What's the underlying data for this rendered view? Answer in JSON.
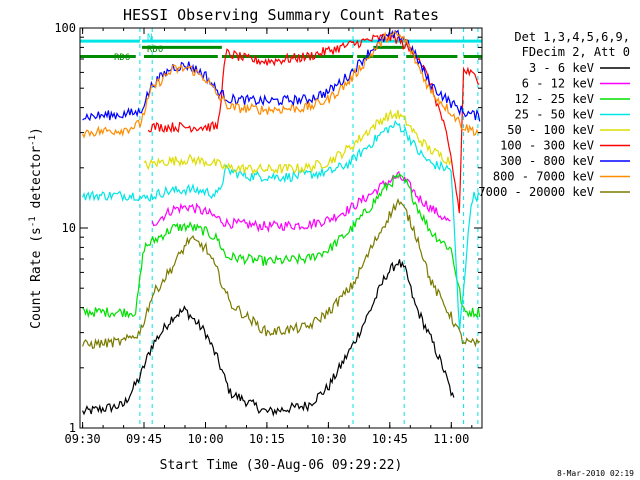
{
  "chart_data": {
    "type": "line",
    "title": "HESSI Observing Summary Count Rates",
    "xlabel": "Start Time (30-Aug-06 09:29:22)",
    "ylabel_main": "Count Rate (s",
    "ylabel_sup1": "-1",
    "ylabel_mid": " detector",
    "ylabel_sup2": "-1",
    "ylabel_end": ")",
    "footer": "8-Mar-2010 02:19",
    "x_ticks": [
      "09:30",
      "09:45",
      "10:00",
      "10:15",
      "10:30",
      "10:45",
      "11:00"
    ],
    "y_ticks": [
      "1",
      "10",
      "100"
    ],
    "xlim": [
      "09:29:22",
      "11:07:30"
    ],
    "ylim": [
      1,
      100
    ],
    "yscale": "log",
    "legend": {
      "placement": "right",
      "header_line1": "Det 1,3,4,5,6,9,",
      "header_line2": "FDecim 2, Att 0"
    },
    "annotations": [
      {
        "text": "N",
        "color": "#00e5e5"
      },
      {
        "text": "RD0",
        "color": "#008c00"
      },
      {
        "text": "RD6",
        "color": "#008c00"
      }
    ],
    "status_bars": [
      {
        "name": "N",
        "color": "#00e5e5",
        "level": 86,
        "segments": [
          [
            "09:29:22",
            "09:44:00"
          ],
          [
            "09:44:30",
            "11:07:30"
          ]
        ]
      },
      {
        "name": "RD0",
        "color": "#008c00",
        "level": 80,
        "segments": [
          [
            "09:44:30",
            "10:04:00"
          ],
          [
            "10:41:00",
            "10:48:30"
          ]
        ]
      },
      {
        "name": "RD6",
        "color": "#008c00",
        "level": 72,
        "segments": [
          [
            "09:29:22",
            "09:43:00"
          ],
          [
            "09:45:00",
            "10:03:00"
          ],
          [
            "10:04:00",
            "10:36:00"
          ],
          [
            "10:37:00",
            "10:47:00"
          ],
          [
            "10:49:00",
            "11:01:30"
          ],
          [
            "11:03:00",
            "11:07:30"
          ]
        ]
      }
    ],
    "night_times": [
      "09:44:00",
      "09:47:00",
      "10:36:00",
      "10:48:30",
      "11:03:00",
      "11:06:30"
    ],
    "series": [
      {
        "name": "3 - 6 keV",
        "color": "#000000",
        "points": [
          [
            "09:30",
            1.2
          ],
          [
            "09:40",
            1.3
          ],
          [
            "09:44",
            1.8
          ],
          [
            "09:47",
            2.6
          ],
          [
            "09:52",
            3.6
          ],
          [
            "09:55",
            3.9
          ],
          [
            "10:00",
            3.0
          ],
          [
            "10:03",
            2.2
          ],
          [
            "10:06",
            1.5
          ],
          [
            "10:15",
            1.2
          ],
          [
            "10:25",
            1.3
          ],
          [
            "10:30",
            1.6
          ],
          [
            "10:36",
            2.6
          ],
          [
            "10:40",
            3.8
          ],
          [
            "10:44",
            5.8
          ],
          [
            "10:47",
            6.8
          ],
          [
            "10:49",
            6.0
          ],
          [
            "10:51",
            4.2
          ],
          [
            "10:55",
            2.8
          ],
          [
            "10:58",
            2.0
          ],
          [
            "11:01",
            1.3
          ]
        ]
      },
      {
        "name": "6 - 12 keV",
        "color": "#ff00ff",
        "points": [
          [
            "09:47",
            10.5
          ],
          [
            "09:52",
            12.4
          ],
          [
            "09:56",
            12.8
          ],
          [
            "10:00",
            12.0
          ],
          [
            "10:03",
            11.2
          ],
          [
            "10:05",
            10.6
          ],
          [
            "10:15",
            10.2
          ],
          [
            "10:25",
            10.4
          ],
          [
            "10:30",
            11.0
          ],
          [
            "10:35",
            12.4
          ],
          [
            "10:40",
            14.6
          ],
          [
            "10:44",
            16.8
          ],
          [
            "10:47",
            18.2
          ],
          [
            "10:49",
            17.0
          ],
          [
            "10:52",
            14.2
          ],
          [
            "10:55",
            12.6
          ],
          [
            "11:00",
            10.5
          ]
        ]
      },
      {
        "name": "12 - 25 keV",
        "color": "#00e000",
        "points": [
          [
            "09:30",
            3.8
          ],
          [
            "09:43",
            3.8
          ],
          [
            "09:45",
            8.0
          ],
          [
            "09:48",
            8.8
          ],
          [
            "09:52",
            10.0
          ],
          [
            "09:56",
            10.2
          ],
          [
            "10:00",
            9.6
          ],
          [
            "10:03",
            8.8
          ],
          [
            "10:05",
            7.2
          ],
          [
            "10:15",
            6.8
          ],
          [
            "10:25",
            7.0
          ],
          [
            "10:30",
            7.8
          ],
          [
            "10:35",
            9.6
          ],
          [
            "10:40",
            12.6
          ],
          [
            "10:44",
            16.0
          ],
          [
            "10:47",
            18.0
          ],
          [
            "10:49",
            16.8
          ],
          [
            "10:52",
            12.4
          ],
          [
            "10:55",
            9.6
          ],
          [
            "11:00",
            7.8
          ],
          [
            "11:03",
            3.8
          ],
          [
            "11:07",
            3.8
          ]
        ]
      },
      {
        "name": "25 - 50 keV",
        "color": "#00e5e5",
        "points": [
          [
            "09:30",
            14.5
          ],
          [
            "09:43",
            14.6
          ],
          [
            "09:45",
            14.0
          ],
          [
            "09:50",
            15.2
          ],
          [
            "09:56",
            15.6
          ],
          [
            "10:00",
            15.2
          ],
          [
            "10:03",
            14.6
          ],
          [
            "10:05",
            19.5
          ],
          [
            "10:10",
            18.2
          ],
          [
            "10:20",
            18.0
          ],
          [
            "10:30",
            19.0
          ],
          [
            "10:35",
            21.0
          ],
          [
            "10:40",
            26.0
          ],
          [
            "10:44",
            31.0
          ],
          [
            "10:47",
            33.0
          ],
          [
            "10:49",
            30.0
          ],
          [
            "10:52",
            24.0
          ],
          [
            "10:55",
            21.0
          ],
          [
            "11:00",
            19.5
          ],
          [
            "11:02",
            3.0
          ],
          [
            "11:05",
            14.4
          ],
          [
            "11:07",
            14.4
          ]
        ]
      },
      {
        "name": "50 - 100 keV",
        "color": "#dddd00",
        "points": [
          [
            "09:45",
            20.5
          ],
          [
            "09:50",
            21.5
          ],
          [
            "09:56",
            22.0
          ],
          [
            "10:00",
            21.5
          ],
          [
            "10:03",
            20.8
          ],
          [
            "10:05",
            20.0
          ],
          [
            "10:15",
            19.6
          ],
          [
            "10:25",
            20.0
          ],
          [
            "10:30",
            21.4
          ],
          [
            "10:35",
            25.0
          ],
          [
            "10:40",
            31.0
          ],
          [
            "10:44",
            36.0
          ],
          [
            "10:47",
            37.0
          ],
          [
            "10:49",
            34.0
          ],
          [
            "10:52",
            28.0
          ],
          [
            "10:55",
            24.5
          ],
          [
            "11:00",
            21.5
          ]
        ]
      },
      {
        "name": "100 - 300 keV",
        "color": "#ff0000",
        "points": [
          [
            "09:46",
            32.0
          ],
          [
            "10:00",
            32.0
          ],
          [
            "10:03",
            32.0
          ],
          [
            "10:05",
            75.0
          ],
          [
            "10:10",
            70.0
          ],
          [
            "10:15",
            68.0
          ],
          [
            "10:25",
            72.0
          ],
          [
            "10:30",
            77.0
          ],
          [
            "10:35",
            82.0
          ],
          [
            "10:40",
            87.0
          ],
          [
            "10:44",
            90.0
          ],
          [
            "10:47",
            88.0
          ],
          [
            "10:49",
            80.0
          ],
          [
            "10:52",
            72.0
          ],
          [
            "10:55",
            52.0
          ],
          [
            "10:58",
            34.0
          ],
          [
            "11:00",
            22.0
          ],
          [
            "11:02",
            12.0
          ],
          [
            "11:03",
            62.0
          ],
          [
            "11:07",
            55.0
          ]
        ]
      },
      {
        "name": "300 - 800 keV",
        "color": "#0000ff",
        "points": [
          [
            "09:30",
            36.0
          ],
          [
            "09:40",
            37.0
          ],
          [
            "09:44",
            38.0
          ],
          [
            "09:47",
            52.0
          ],
          [
            "09:52",
            64.0
          ],
          [
            "09:56",
            65.0
          ],
          [
            "10:00",
            58.0
          ],
          [
            "10:03",
            48.0
          ],
          [
            "10:06",
            44.0
          ],
          [
            "10:15",
            43.0
          ],
          [
            "10:25",
            44.0
          ],
          [
            "10:30",
            48.0
          ],
          [
            "10:35",
            58.0
          ],
          [
            "10:40",
            76.0
          ],
          [
            "10:44",
            90.0
          ],
          [
            "10:47",
            92.0
          ],
          [
            "10:49",
            88.0
          ],
          [
            "10:52",
            68.0
          ],
          [
            "10:55",
            52.0
          ],
          [
            "11:00",
            42.0
          ],
          [
            "11:03",
            38.0
          ],
          [
            "11:07",
            36.0
          ]
        ]
      },
      {
        "name": "800 - 7000 keV",
        "color": "#ff8c00",
        "points": [
          [
            "09:30",
            30.0
          ],
          [
            "09:40",
            31.0
          ],
          [
            "09:44",
            33.0
          ],
          [
            "09:47",
            50.0
          ],
          [
            "09:52",
            62.0
          ],
          [
            "09:56",
            63.0
          ],
          [
            "10:00",
            56.0
          ],
          [
            "10:03",
            46.0
          ],
          [
            "10:06",
            40.0
          ],
          [
            "10:15",
            39.0
          ],
          [
            "10:25",
            40.0
          ],
          [
            "10:30",
            44.0
          ],
          [
            "10:35",
            54.0
          ],
          [
            "10:40",
            72.0
          ],
          [
            "10:44",
            90.0
          ],
          [
            "10:47",
            92.0
          ],
          [
            "10:49",
            86.0
          ],
          [
            "10:52",
            64.0
          ],
          [
            "10:55",
            48.0
          ],
          [
            "11:00",
            38.0
          ],
          [
            "11:03",
            32.0
          ],
          [
            "11:07",
            30.0
          ]
        ]
      },
      {
        "name": "7000 - 20000 keV",
        "color": "#7a7a00",
        "points": [
          [
            "09:30",
            2.6
          ],
          [
            "09:40",
            2.7
          ],
          [
            "09:44",
            3.0
          ],
          [
            "09:47",
            4.6
          ],
          [
            "09:52",
            6.4
          ],
          [
            "09:56",
            8.8
          ],
          [
            "10:00",
            8.0
          ],
          [
            "10:03",
            6.0
          ],
          [
            "10:06",
            4.2
          ],
          [
            "10:15",
            3.0
          ],
          [
            "10:25",
            3.2
          ],
          [
            "10:30",
            3.8
          ],
          [
            "10:36",
            5.2
          ],
          [
            "10:40",
            7.6
          ],
          [
            "10:44",
            10.8
          ],
          [
            "10:47",
            13.6
          ],
          [
            "10:49",
            12.0
          ],
          [
            "10:52",
            8.6
          ],
          [
            "10:55",
            5.4
          ],
          [
            "11:00",
            3.6
          ],
          [
            "11:03",
            2.7
          ],
          [
            "11:07",
            2.6
          ]
        ]
      }
    ]
  }
}
